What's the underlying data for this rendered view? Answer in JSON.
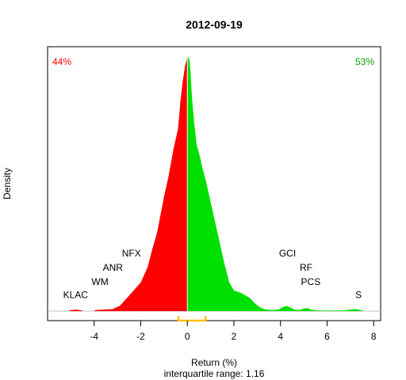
{
  "chart_data": {
    "type": "area",
    "title": "2012-09-19",
    "xlabel": "Return (%)",
    "ylabel": "Density",
    "subtitle": "interquartile range: 1.16",
    "xlim": [
      -6,
      8.3
    ],
    "ylim": [
      -0.02,
      1.0
    ],
    "x_ticks": [
      -4,
      -2,
      0,
      2,
      4,
      6,
      8
    ],
    "x_tick_labels": [
      "-4",
      "-2",
      "0",
      "2",
      "4",
      "6",
      "8"
    ],
    "pct_negative": "44%",
    "pct_positive": "53%",
    "colors": {
      "negative": "#ff0000",
      "positive": "#00e000",
      "iqr": "#ffc000",
      "baseline": "#c0c0c0",
      "frame": "#000000"
    },
    "density_negative": [
      [
        -5.1,
        0
      ],
      [
        -5.0,
        0.004
      ],
      [
        -4.8,
        0.006
      ],
      [
        -4.6,
        0.004
      ],
      [
        -4.45,
        0
      ],
      [
        -4.0,
        0
      ],
      [
        -3.95,
        0.004
      ],
      [
        -3.6,
        0.006
      ],
      [
        -3.2,
        0.008
      ],
      [
        -2.9,
        0.02
      ],
      [
        -2.6,
        0.05
      ],
      [
        -2.3,
        0.08
      ],
      [
        -2.0,
        0.11
      ],
      [
        -1.7,
        0.17
      ],
      [
        -1.5,
        0.24
      ],
      [
        -1.3,
        0.3
      ],
      [
        -1.0,
        0.44
      ],
      [
        -0.8,
        0.52
      ],
      [
        -0.6,
        0.62
      ],
      [
        -0.4,
        0.7
      ],
      [
        -0.3,
        0.8
      ],
      [
        -0.2,
        0.88
      ],
      [
        -0.1,
        0.94
      ],
      [
        0,
        0.976
      ]
    ],
    "density_positive": [
      [
        0,
        0.976
      ],
      [
        0.05,
        0.975
      ],
      [
        0.1,
        0.96
      ],
      [
        0.15,
        0.9
      ],
      [
        0.2,
        0.82
      ],
      [
        0.3,
        0.72
      ],
      [
        0.4,
        0.64
      ],
      [
        0.55,
        0.59
      ],
      [
        0.65,
        0.55
      ],
      [
        0.8,
        0.5
      ],
      [
        0.95,
        0.44
      ],
      [
        1.1,
        0.38
      ],
      [
        1.3,
        0.3
      ],
      [
        1.45,
        0.24
      ],
      [
        1.6,
        0.18
      ],
      [
        1.8,
        0.11
      ],
      [
        2.0,
        0.08
      ],
      [
        2.3,
        0.07
      ],
      [
        2.5,
        0.06
      ],
      [
        2.7,
        0.05
      ],
      [
        2.9,
        0.03
      ],
      [
        3.1,
        0.015
      ],
      [
        3.3,
        0.008
      ],
      [
        3.6,
        0.004
      ],
      [
        3.9,
        0.006
      ],
      [
        4.1,
        0.015
      ],
      [
        4.25,
        0.02
      ],
      [
        4.4,
        0.015
      ],
      [
        4.6,
        0.006
      ],
      [
        4.8,
        0.004
      ],
      [
        5.0,
        0.01
      ],
      [
        5.15,
        0.012
      ],
      [
        5.3,
        0.006
      ],
      [
        5.5,
        0.003
      ],
      [
        5.8,
        0.002
      ],
      [
        6.3,
        0.002
      ],
      [
        6.8,
        0.003
      ],
      [
        7.0,
        0.006
      ],
      [
        7.2,
        0.008
      ],
      [
        7.4,
        0.005
      ],
      [
        7.6,
        0.0
      ]
    ],
    "iqr": {
      "start": -0.38,
      "end": 0.78
    },
    "annotations": [
      {
        "label": "KLAC",
        "x": -4.8,
        "y": 0.05
      },
      {
        "label": "WM",
        "x": -3.75,
        "y": 0.1
      },
      {
        "label": "ANR",
        "x": -3.2,
        "y": 0.155
      },
      {
        "label": "NFX",
        "x": -2.4,
        "y": 0.21
      },
      {
        "label": "GCI",
        "x": 4.3,
        "y": 0.21
      },
      {
        "label": "RF",
        "x": 5.1,
        "y": 0.155
      },
      {
        "label": "PCS",
        "x": 5.3,
        "y": 0.1
      },
      {
        "label": "S",
        "x": 7.35,
        "y": 0.05
      }
    ]
  }
}
